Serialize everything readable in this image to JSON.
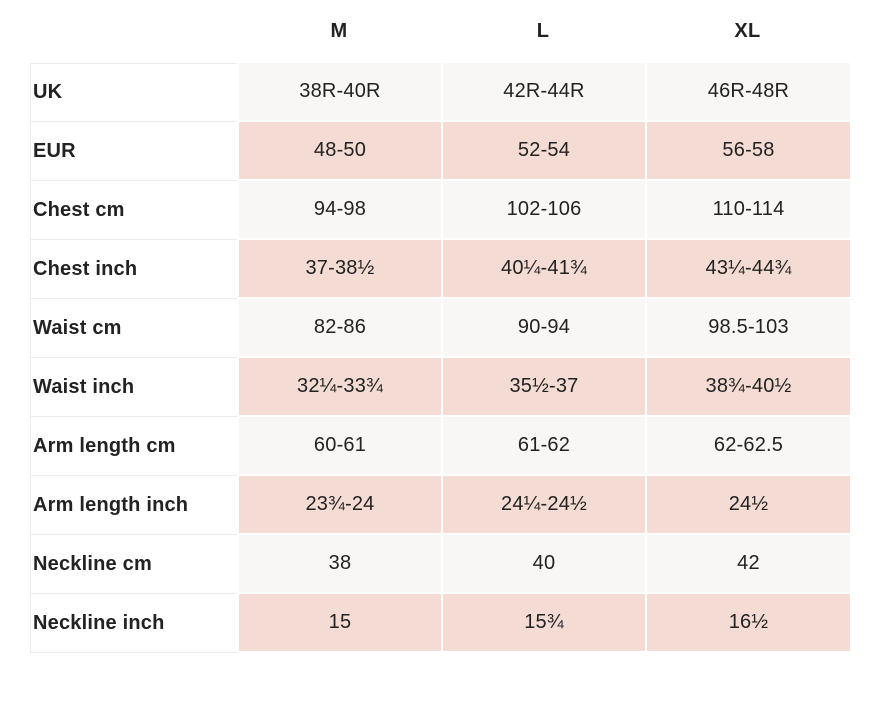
{
  "colors": {
    "background": "#ffffff",
    "text": "#222222",
    "row_light": "#f8f7f5",
    "row_pink": "#f4dcd4",
    "hairline": "#efeae6"
  },
  "size_table": {
    "column_headers": [
      "M",
      "L",
      "XL"
    ],
    "rows": [
      {
        "label": "UK",
        "values": [
          "38R-40R",
          "42R-44R",
          "46R-48R"
        ]
      },
      {
        "label": "EUR",
        "values": [
          "48-50",
          "52-54",
          "56-58"
        ]
      },
      {
        "label": "Chest cm",
        "values": [
          "94-98",
          "102-106",
          "110-114"
        ]
      },
      {
        "label": "Chest inch",
        "values": [
          "37-38½",
          "40¼-41¾",
          "43¼-44¾"
        ]
      },
      {
        "label": "Waist cm",
        "values": [
          "82-86",
          "90-94",
          "98.5-103"
        ]
      },
      {
        "label": "Waist inch",
        "values": [
          "32¼-33¾",
          "35½-37",
          "38¾-40½"
        ]
      },
      {
        "label": "Arm length cm",
        "values": [
          "60-61",
          "61-62",
          "62-62.5"
        ]
      },
      {
        "label": "Arm length inch",
        "values": [
          "23¾-24",
          "24¼-24½",
          "24½"
        ]
      },
      {
        "label": "Neckline cm",
        "values": [
          "38",
          "40",
          "42"
        ]
      },
      {
        "label": "Neckline inch",
        "values": [
          "15",
          "15¾",
          "16½"
        ]
      }
    ]
  }
}
